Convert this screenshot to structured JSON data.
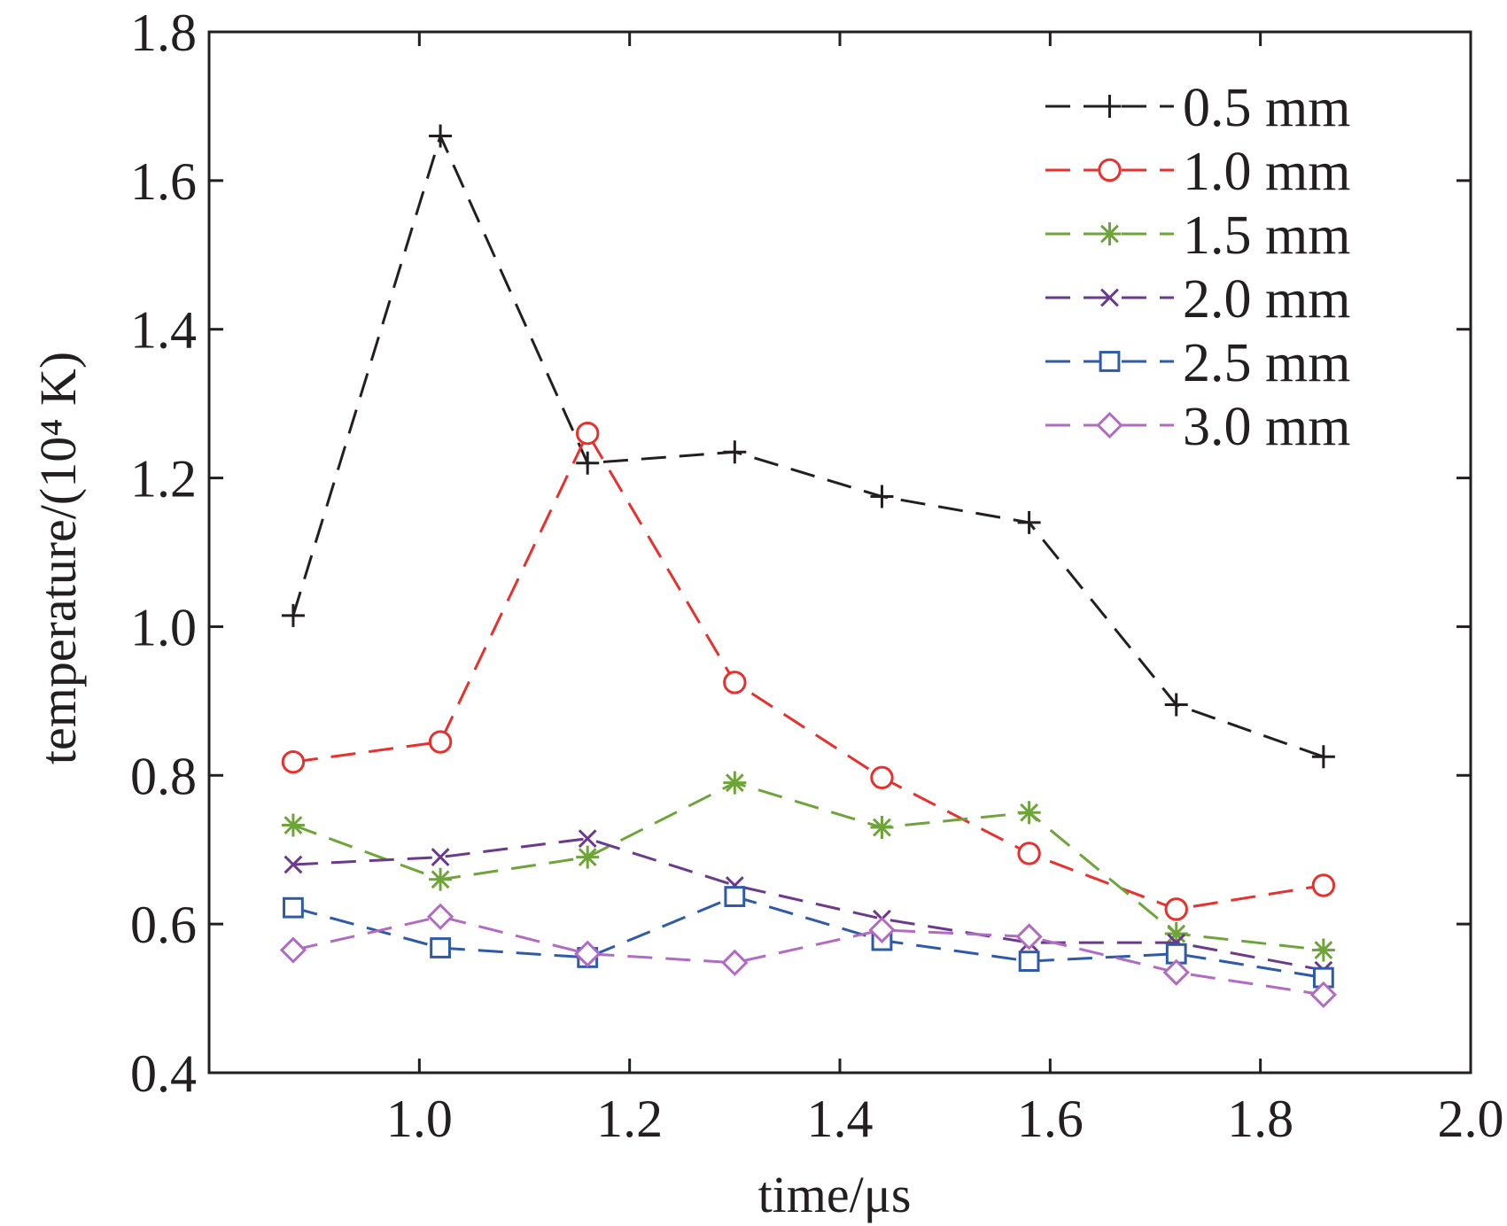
{
  "chart_data": {
    "type": "line",
    "title": "",
    "xlabel": "time/μs",
    "ylabel": "temperature/(10⁴ K)",
    "xlim": [
      0.8,
      2.0
    ],
    "ylim": [
      0.4,
      1.8
    ],
    "xticks": [
      "1.0",
      "1.2",
      "1.4",
      "1.6",
      "1.8",
      "2.0"
    ],
    "yticks": [
      "0.4",
      "0.6",
      "0.8",
      "1.0",
      "1.2",
      "1.4",
      "1.6",
      "1.8"
    ],
    "grid": false,
    "legend_position": "top-right",
    "x": [
      0.88,
      1.02,
      1.16,
      1.3,
      1.44,
      1.58,
      1.72,
      1.86
    ],
    "series": [
      {
        "name": "0.5 mm",
        "color": "#231f20",
        "marker": "plus",
        "values": [
          1.015,
          1.66,
          1.22,
          1.235,
          1.175,
          1.14,
          0.895,
          0.825
        ]
      },
      {
        "name": "1.0 mm",
        "color": "#e8302c",
        "marker": "circle",
        "values": [
          0.818,
          0.845,
          1.26,
          0.925,
          0.797,
          0.695,
          0.62,
          0.652
        ]
      },
      {
        "name": "1.5 mm",
        "color": "#6ea43a",
        "marker": "asterisk",
        "values": [
          0.733,
          0.66,
          0.69,
          0.79,
          0.73,
          0.75,
          0.587,
          0.565
        ]
      },
      {
        "name": "2.0 mm",
        "color": "#6b3a8c",
        "marker": "x",
        "values": [
          0.68,
          0.69,
          0.715,
          0.652,
          0.607,
          0.575,
          0.575,
          0.538
        ]
      },
      {
        "name": "2.5 mm",
        "color": "#2e5aa8",
        "marker": "square",
        "values": [
          0.622,
          0.568,
          0.555,
          0.637,
          0.578,
          0.55,
          0.56,
          0.528
        ]
      },
      {
        "name": "3.0 mm",
        "color": "#b26bc2",
        "marker": "diamond",
        "values": [
          0.565,
          0.61,
          0.56,
          0.548,
          0.592,
          0.583,
          0.535,
          0.505
        ]
      }
    ]
  }
}
